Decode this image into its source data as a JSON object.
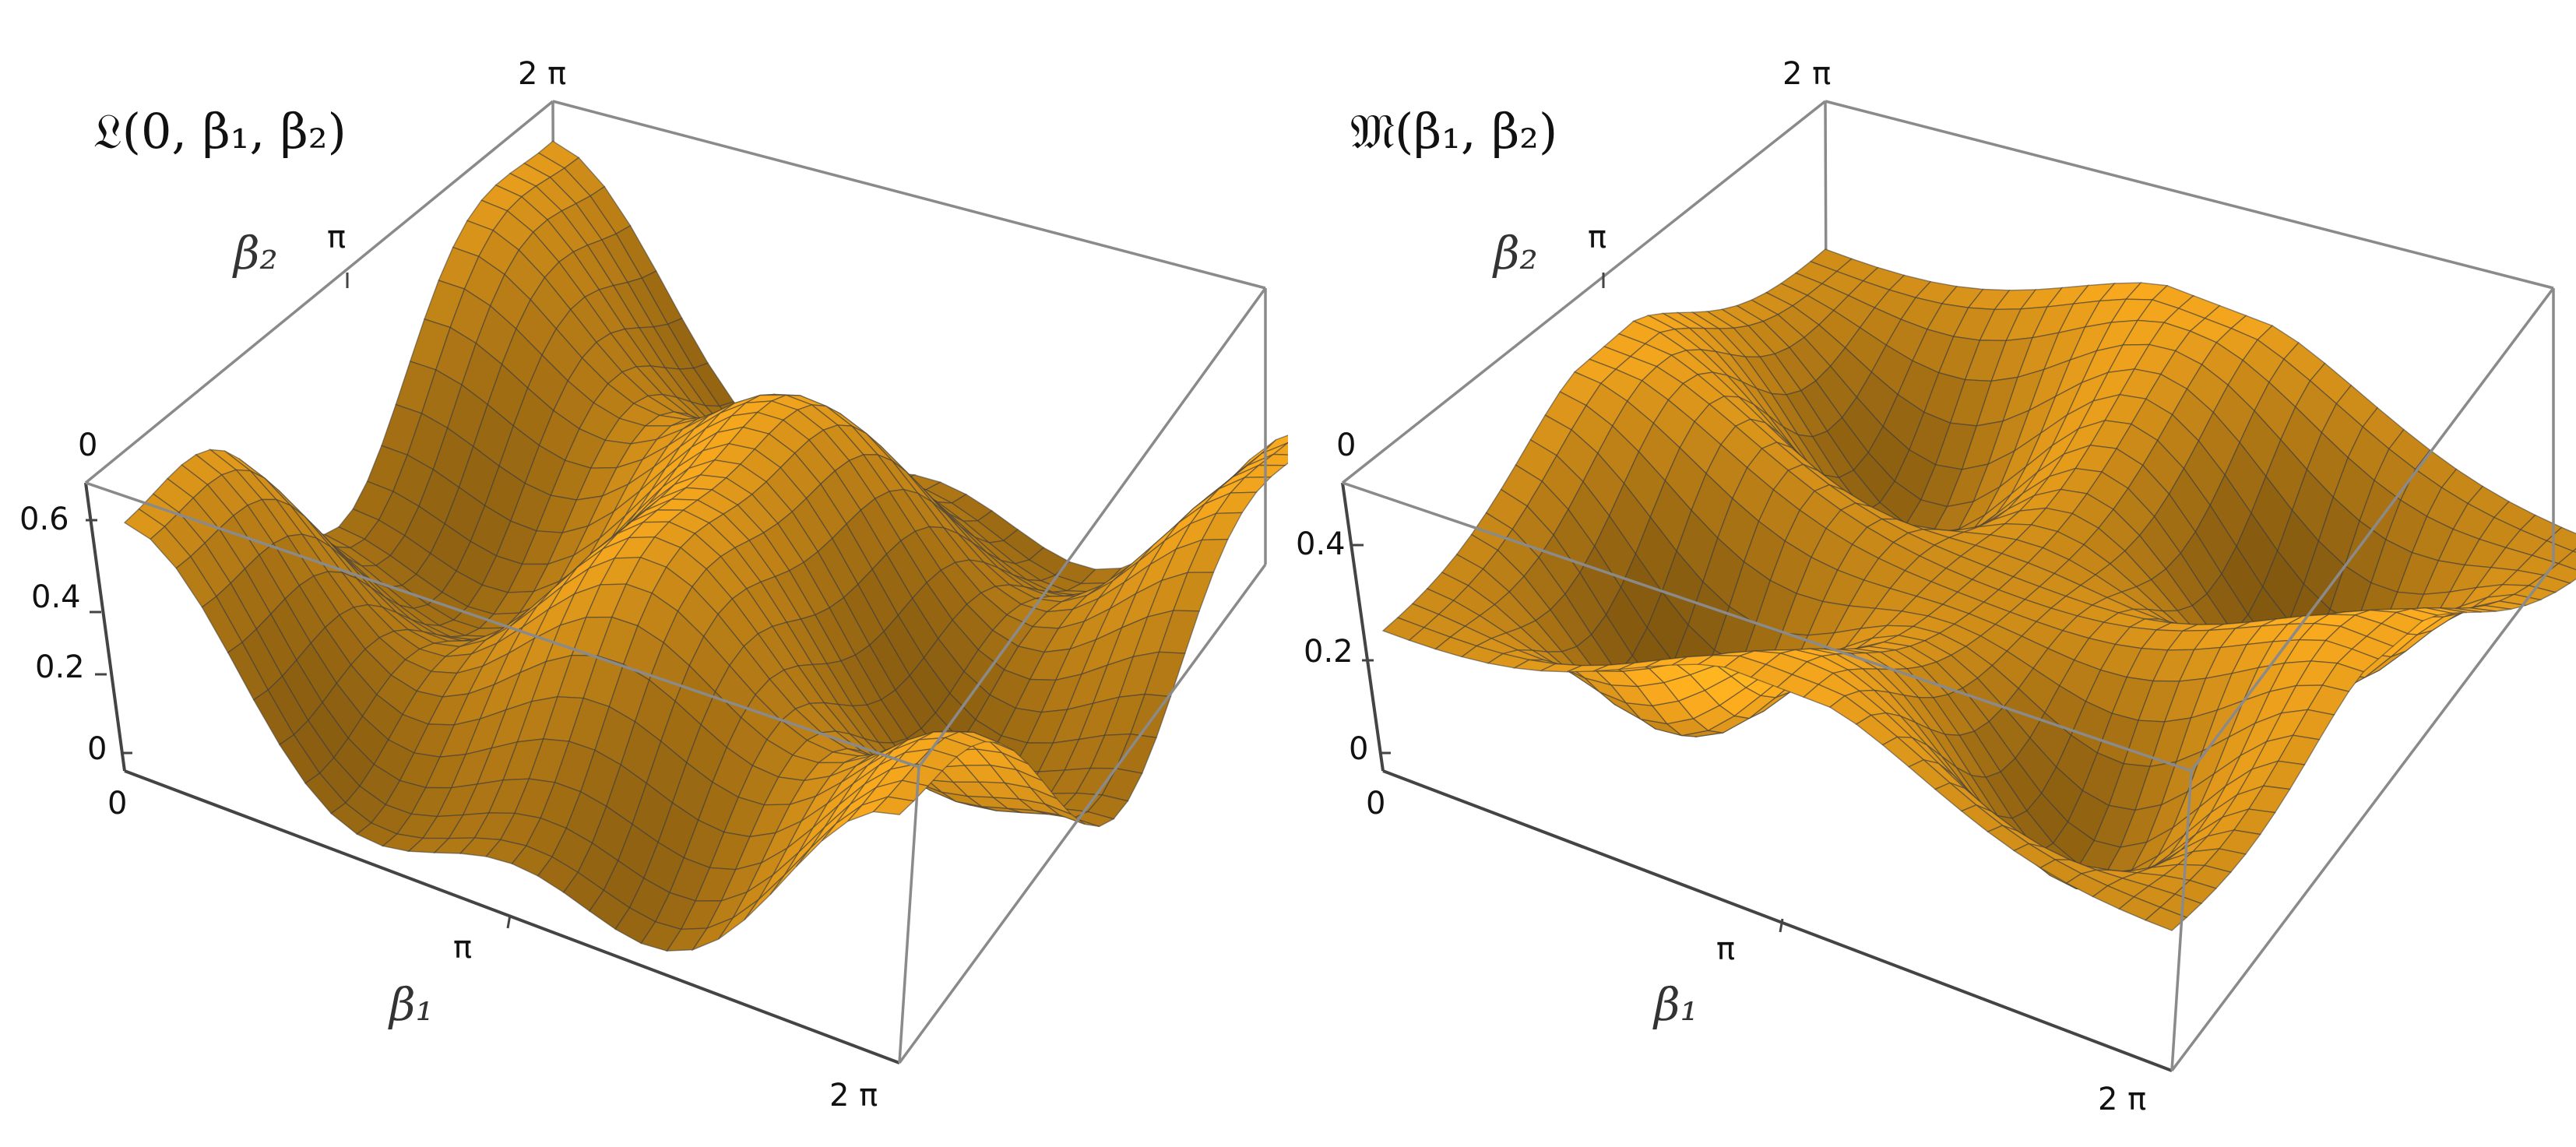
{
  "charts": [
    {
      "id": "left",
      "type": "surface3d",
      "title": "𝔏(0, β₁, β₂)",
      "xlabel": "β₁",
      "ylabel": "β₂",
      "x_ticks": [
        "0",
        "π",
        "2 π"
      ],
      "y_ticks": [
        "0",
        "π",
        "2 π"
      ],
      "z_ticks": [
        "0",
        "0.2",
        "0.4",
        "0.6"
      ],
      "zlim": [
        0,
        0.65
      ],
      "surface_color": "#F5A81C",
      "mesh_color": "#3a3a3a"
    },
    {
      "id": "right",
      "type": "surface3d",
      "title": "𝔐(β₁, β₂)",
      "xlabel": "β₁",
      "ylabel": "β₂",
      "x_ticks": [
        "0",
        "π",
        "2 π"
      ],
      "y_ticks": [
        "0",
        "π",
        "2 π"
      ],
      "z_ticks": [
        "0",
        "0.2",
        "0.4"
      ],
      "zlim": [
        0,
        0.55
      ],
      "surface_color": "#F5A81C",
      "mesh_color": "#3a3a3a"
    }
  ]
}
